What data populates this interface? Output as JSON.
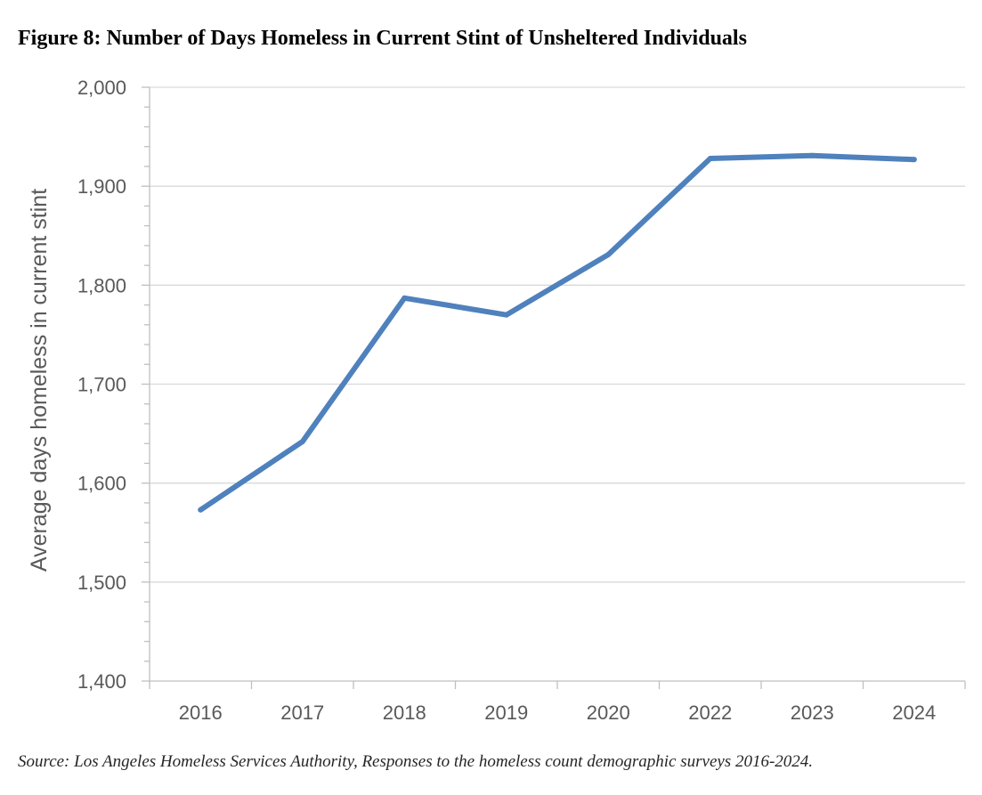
{
  "title": "Figure 8: Number of Days Homeless in Current Stint of Unsheltered Individuals",
  "source": "Source: Los Angeles Homeless Services Authority, Responses to the homeless count demographic surveys 2016-2024.",
  "chart_data": {
    "type": "line",
    "title": "Figure 8: Number of Days Homeless in Current Stint of Unsheltered Individuals",
    "xlabel": "",
    "ylabel": "Average days homeless in current stint",
    "categories": [
      "2016",
      "2017",
      "2018",
      "2019",
      "2020",
      "2022",
      "2023",
      "2024"
    ],
    "series": [
      {
        "values": [
          1573,
          1642,
          1787,
          1770,
          1831,
          1928,
          1931,
          1927
        ]
      }
    ],
    "ylim": [
      1400,
      2000
    ],
    "yticks": [
      1400,
      1500,
      1600,
      1700,
      1800,
      1900,
      2000
    ],
    "ytick_labels": [
      "1,400",
      "1,500",
      "1,600",
      "1,700",
      "1,800",
      "1,900",
      "2,000"
    ],
    "grid": true,
    "legend": "none",
    "line_color": "#4f81bd",
    "grid_color": "#d9d9d9",
    "axis_color": "#bfbfbf"
  }
}
